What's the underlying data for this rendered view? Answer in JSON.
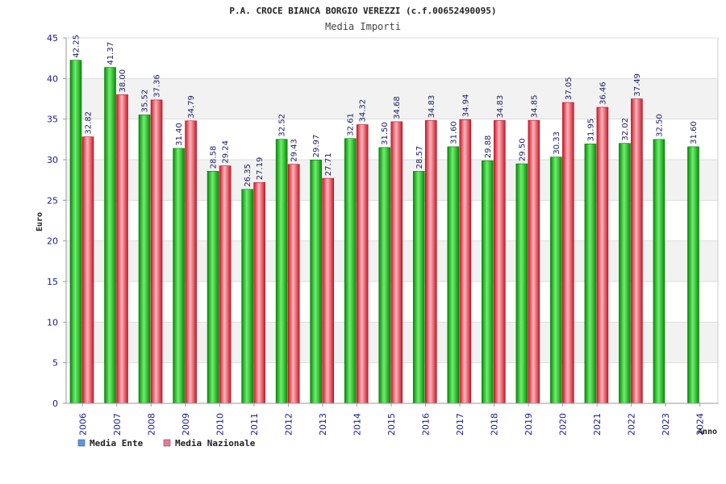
{
  "chart_data": {
    "type": "bar",
    "title": "P.A. CROCE BIANCA BORGIO VEREZZI (c.f.00652490095)",
    "subtitle": "Media Importi",
    "xlabel": "Anno",
    "ylabel": "Euro",
    "ylim": [
      0,
      45
    ],
    "yticks": [
      "0",
      "5",
      "10",
      "15",
      "20",
      "25",
      "30",
      "35",
      "40",
      "45"
    ],
    "categories": [
      "2006",
      "2007",
      "2008",
      "2009",
      "2010",
      "2011",
      "2012",
      "2013",
      "2014",
      "2015",
      "2016",
      "2017",
      "2018",
      "2019",
      "2020",
      "2021",
      "2022",
      "2023",
      "2024"
    ],
    "series": [
      {
        "name": "Media Ente",
        "color": "#22bb22",
        "values": [
          42.25,
          41.37,
          35.52,
          31.4,
          28.58,
          26.35,
          32.52,
          29.97,
          32.61,
          31.5,
          28.57,
          31.6,
          29.88,
          29.5,
          30.33,
          31.95,
          32.02,
          32.5,
          31.6
        ],
        "labels": [
          "42.25",
          "41.37",
          "35.52",
          "31.40",
          "28.58",
          "26.35",
          "32.52",
          "29.97",
          "32.61",
          "31.50",
          "28.57",
          "31.60",
          "29.88",
          "29.50",
          "30.33",
          "31.95",
          "32.02",
          "32.50",
          "31.60"
        ]
      },
      {
        "name": "Media Nazionale",
        "color": "#ee3344",
        "values": [
          32.82,
          38.0,
          37.36,
          34.79,
          29.24,
          27.19,
          29.43,
          27.71,
          34.32,
          34.68,
          34.83,
          34.94,
          34.83,
          34.85,
          37.05,
          36.46,
          37.49,
          null,
          null
        ],
        "labels": [
          "32.82",
          "38.00",
          "37.36",
          "34.79",
          "29.24",
          "27.19",
          "29.43",
          "27.71",
          "34.32",
          "34.68",
          "34.83",
          "34.94",
          "34.83",
          "34.85",
          "37.05",
          "36.46",
          "37.49",
          null,
          null
        ]
      }
    ],
    "legend": [
      {
        "name": "Media Ente",
        "color": "#5599ee"
      },
      {
        "name": "Media Nazionale",
        "color": "#ee7799"
      }
    ],
    "legend_position": "bottom-left",
    "grid": true
  }
}
